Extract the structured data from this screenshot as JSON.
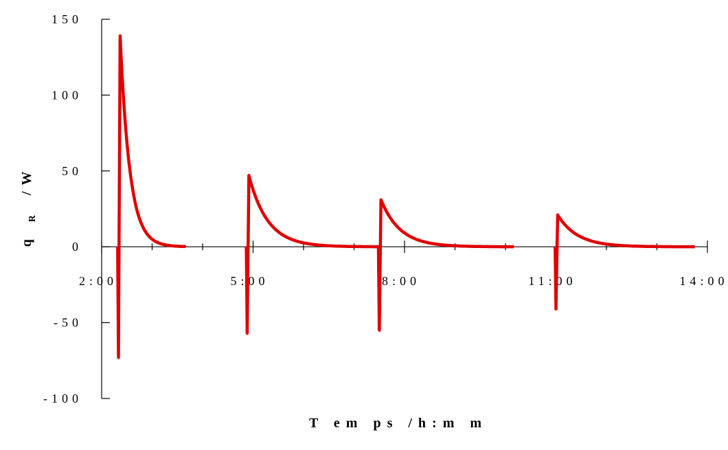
{
  "chart_data": {
    "type": "line",
    "title": "",
    "xlabel": "T em ps /h:m m",
    "ylabel": "q R /W",
    "ylabel_main": "q",
    "ylabel_sub": "R",
    "ylabel_unit": "/W",
    "xlim": [
      "2:00",
      "14:00"
    ],
    "ylim": [
      -100,
      150
    ],
    "x_ticks": [
      "2:00",
      "5:00",
      "8:00",
      "11:00",
      "14:00"
    ],
    "y_ticks": [
      "150",
      "100",
      "50",
      "0",
      "-50",
      "-100"
    ],
    "y_tick_values": [
      150,
      100,
      50,
      0,
      -50,
      -100
    ],
    "x_minor_ticks_per_major": 3,
    "grid": false,
    "series_color": "#e00000",
    "series": [
      {
        "pulses": [
          {
            "start": "2:20",
            "min": -73,
            "peak": 139,
            "end": "3:40"
          },
          {
            "start": "4:53",
            "min": -57,
            "peak": 47,
            "end": "7:30"
          },
          {
            "start": "7:30",
            "min": -55,
            "peak": 31,
            "end": "10:10"
          },
          {
            "start": "11:00",
            "min": -41,
            "peak": 21,
            "end": "13:45"
          }
        ]
      }
    ]
  }
}
